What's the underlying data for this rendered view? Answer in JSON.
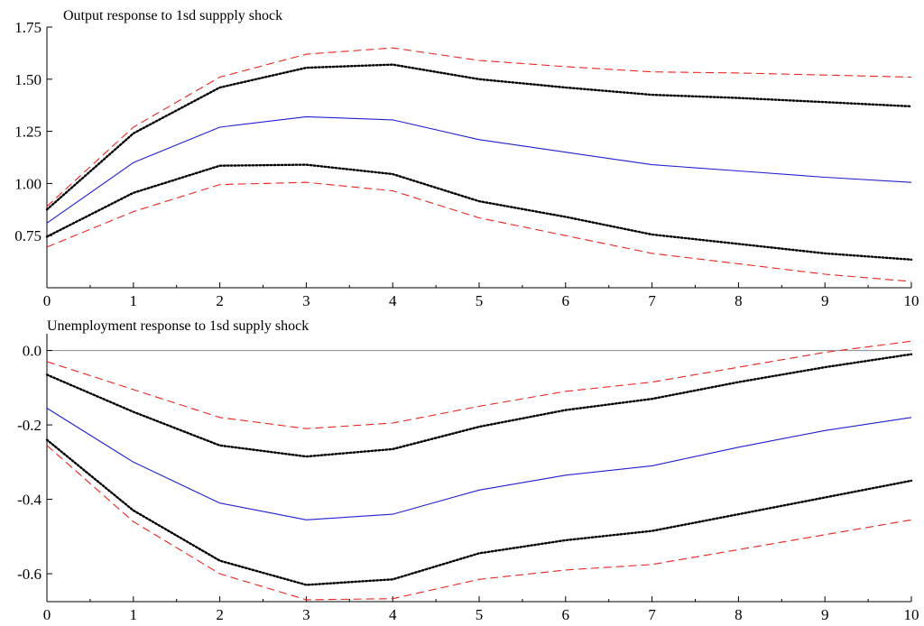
{
  "chart_data": [
    {
      "type": "line",
      "title": "Output response to 1sd suppply shock",
      "xlabel": "",
      "ylabel": "",
      "x": [
        0,
        1,
        2,
        3,
        4,
        5,
        6,
        7,
        8,
        9,
        10
      ],
      "xlim": [
        0,
        10
      ],
      "ylim": [
        0.5,
        1.75
      ],
      "xticks": [
        0,
        1,
        2,
        3,
        4,
        5,
        6,
        7,
        8,
        9,
        10
      ],
      "yticks": [
        0.75,
        1.0,
        1.25,
        1.5,
        1.75
      ],
      "ytick_labels": [
        "0.75",
        "1.00",
        "1.25",
        "1.50",
        "1.75"
      ],
      "zero_line": false,
      "grid": false,
      "legend": "none",
      "series": [
        {
          "style": "dashed",
          "color": "#e8251f",
          "values": [
            0.89,
            1.27,
            1.51,
            1.62,
            1.65,
            1.59,
            1.56,
            1.535,
            1.53,
            1.52,
            1.51
          ]
        },
        {
          "style": "dotted",
          "color": "#000000",
          "values": [
            0.875,
            1.24,
            1.46,
            1.555,
            1.57,
            1.5,
            1.46,
            1.425,
            1.41,
            1.39,
            1.37
          ]
        },
        {
          "style": "solid",
          "color": "#1f1fd0",
          "values": [
            0.81,
            1.1,
            1.27,
            1.32,
            1.305,
            1.21,
            1.15,
            1.09,
            1.06,
            1.03,
            1.005
          ]
        },
        {
          "style": "dotted",
          "color": "#000000",
          "values": [
            0.745,
            0.955,
            1.085,
            1.09,
            1.045,
            0.915,
            0.84,
            0.755,
            0.71,
            0.665,
            0.635
          ]
        },
        {
          "style": "dashed",
          "color": "#e8251f",
          "values": [
            0.695,
            0.865,
            0.995,
            1.005,
            0.965,
            0.835,
            0.75,
            0.665,
            0.615,
            0.565,
            0.53
          ]
        }
      ]
    },
    {
      "type": "line",
      "title": "Unemployment response to 1sd supply shock",
      "xlabel": "",
      "ylabel": "",
      "x": [
        0,
        1,
        2,
        3,
        4,
        5,
        6,
        7,
        8,
        9,
        10
      ],
      "xlim": [
        0,
        10
      ],
      "ylim": [
        -0.675,
        0.045
      ],
      "xticks": [
        0,
        1,
        2,
        3,
        4,
        5,
        6,
        7,
        8,
        9,
        10
      ],
      "yticks": [
        0.0,
        -0.2,
        -0.4,
        -0.6
      ],
      "ytick_labels": [
        "0.0",
        "-0.2",
        "-0.4",
        "-0.6"
      ],
      "zero_line": true,
      "grid": false,
      "legend": "none",
      "series": [
        {
          "style": "dashed",
          "color": "#e8251f",
          "values": [
            -0.03,
            -0.105,
            -0.18,
            -0.21,
            -0.195,
            -0.15,
            -0.11,
            -0.085,
            -0.045,
            -0.005,
            0.025
          ]
        },
        {
          "style": "dotted",
          "color": "#000000",
          "values": [
            -0.065,
            -0.165,
            -0.255,
            -0.285,
            -0.265,
            -0.205,
            -0.16,
            -0.13,
            -0.085,
            -0.045,
            -0.01
          ]
        },
        {
          "style": "solid",
          "color": "#1f1fd0",
          "values": [
            -0.155,
            -0.3,
            -0.41,
            -0.455,
            -0.44,
            -0.375,
            -0.335,
            -0.31,
            -0.26,
            -0.215,
            -0.18
          ]
        },
        {
          "style": "dotted",
          "color": "#000000",
          "values": [
            -0.24,
            -0.43,
            -0.565,
            -0.63,
            -0.615,
            -0.545,
            -0.51,
            -0.485,
            -0.44,
            -0.395,
            -0.35
          ]
        },
        {
          "style": "dashed",
          "color": "#e8251f",
          "values": [
            -0.255,
            -0.46,
            -0.6,
            -0.67,
            -0.667,
            -0.615,
            -0.59,
            -0.575,
            -0.535,
            -0.495,
            -0.455
          ]
        }
      ]
    }
  ]
}
